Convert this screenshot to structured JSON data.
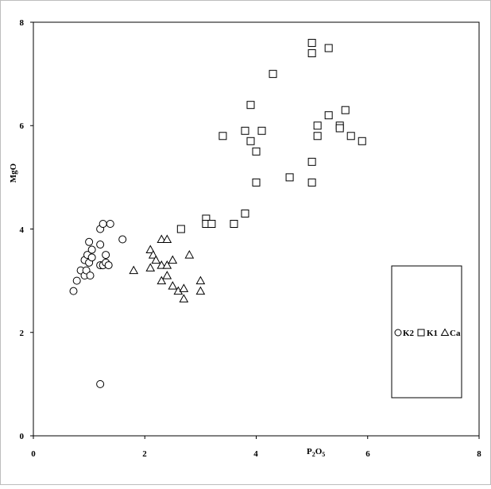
{
  "chart_data": {
    "type": "scatter",
    "xlabel": "P2O5",
    "xlabel_main": "P",
    "xlabel_sub1": "2",
    "xlabel_mid": "O",
    "xlabel_sub2": "5",
    "ylabel": "MgO",
    "xlim": [
      0,
      8
    ],
    "ylim": [
      0,
      8
    ],
    "xticks": [
      "0",
      "2",
      "4",
      "6",
      "8"
    ],
    "yticks": [
      "0",
      "2",
      "4",
      "6",
      "8"
    ],
    "grid": false,
    "legend_position": "right",
    "series": [
      {
        "name": "K2",
        "marker": "circle",
        "points": [
          [
            0.72,
            2.8
          ],
          [
            0.78,
            3.0
          ],
          [
            0.85,
            3.2
          ],
          [
            0.92,
            3.1
          ],
          [
            0.92,
            3.4
          ],
          [
            0.95,
            3.2
          ],
          [
            0.97,
            3.5
          ],
          [
            1.0,
            3.75
          ],
          [
            1.0,
            3.35
          ],
          [
            1.02,
            3.1
          ],
          [
            1.05,
            3.6
          ],
          [
            1.05,
            3.45
          ],
          [
            1.2,
            4.0
          ],
          [
            1.2,
            3.7
          ],
          [
            1.2,
            3.3
          ],
          [
            1.25,
            4.1
          ],
          [
            1.25,
            3.3
          ],
          [
            1.3,
            3.5
          ],
          [
            1.3,
            3.35
          ],
          [
            1.35,
            3.3
          ],
          [
            1.38,
            4.1
          ],
          [
            1.6,
            3.8
          ],
          [
            1.2,
            1.0
          ]
        ]
      },
      {
        "name": "K1",
        "marker": "square",
        "points": [
          [
            2.65,
            4.0
          ],
          [
            3.1,
            4.2
          ],
          [
            3.1,
            4.1
          ],
          [
            3.2,
            4.1
          ],
          [
            3.4,
            5.8
          ],
          [
            3.6,
            4.1
          ],
          [
            3.8,
            4.3
          ],
          [
            3.8,
            5.9
          ],
          [
            3.9,
            6.4
          ],
          [
            3.9,
            5.7
          ],
          [
            4.0,
            5.5
          ],
          [
            4.0,
            4.9
          ],
          [
            4.1,
            5.9
          ],
          [
            4.3,
            7.0
          ],
          [
            4.6,
            5.0
          ],
          [
            5.0,
            7.6
          ],
          [
            5.0,
            7.4
          ],
          [
            5.0,
            5.3
          ],
          [
            5.0,
            4.9
          ],
          [
            5.1,
            6.0
          ],
          [
            5.1,
            5.8
          ],
          [
            5.3,
            7.5
          ],
          [
            5.3,
            6.2
          ],
          [
            5.5,
            6.0
          ],
          [
            5.5,
            5.95
          ],
          [
            5.6,
            6.3
          ],
          [
            5.7,
            5.8
          ],
          [
            5.9,
            5.7
          ]
        ]
      },
      {
        "name": "Ca",
        "marker": "triangle",
        "points": [
          [
            1.8,
            3.2
          ],
          [
            2.1,
            3.6
          ],
          [
            2.1,
            3.25
          ],
          [
            2.15,
            3.5
          ],
          [
            2.2,
            3.4
          ],
          [
            2.3,
            3.8
          ],
          [
            2.3,
            3.3
          ],
          [
            2.3,
            3.0
          ],
          [
            2.4,
            3.8
          ],
          [
            2.4,
            3.3
          ],
          [
            2.4,
            3.1
          ],
          [
            2.5,
            3.4
          ],
          [
            2.5,
            2.9
          ],
          [
            2.6,
            2.8
          ],
          [
            2.7,
            2.85
          ],
          [
            2.7,
            2.65
          ],
          [
            2.8,
            3.5
          ],
          [
            3.0,
            3.0
          ],
          [
            3.0,
            2.8
          ]
        ]
      }
    ]
  }
}
